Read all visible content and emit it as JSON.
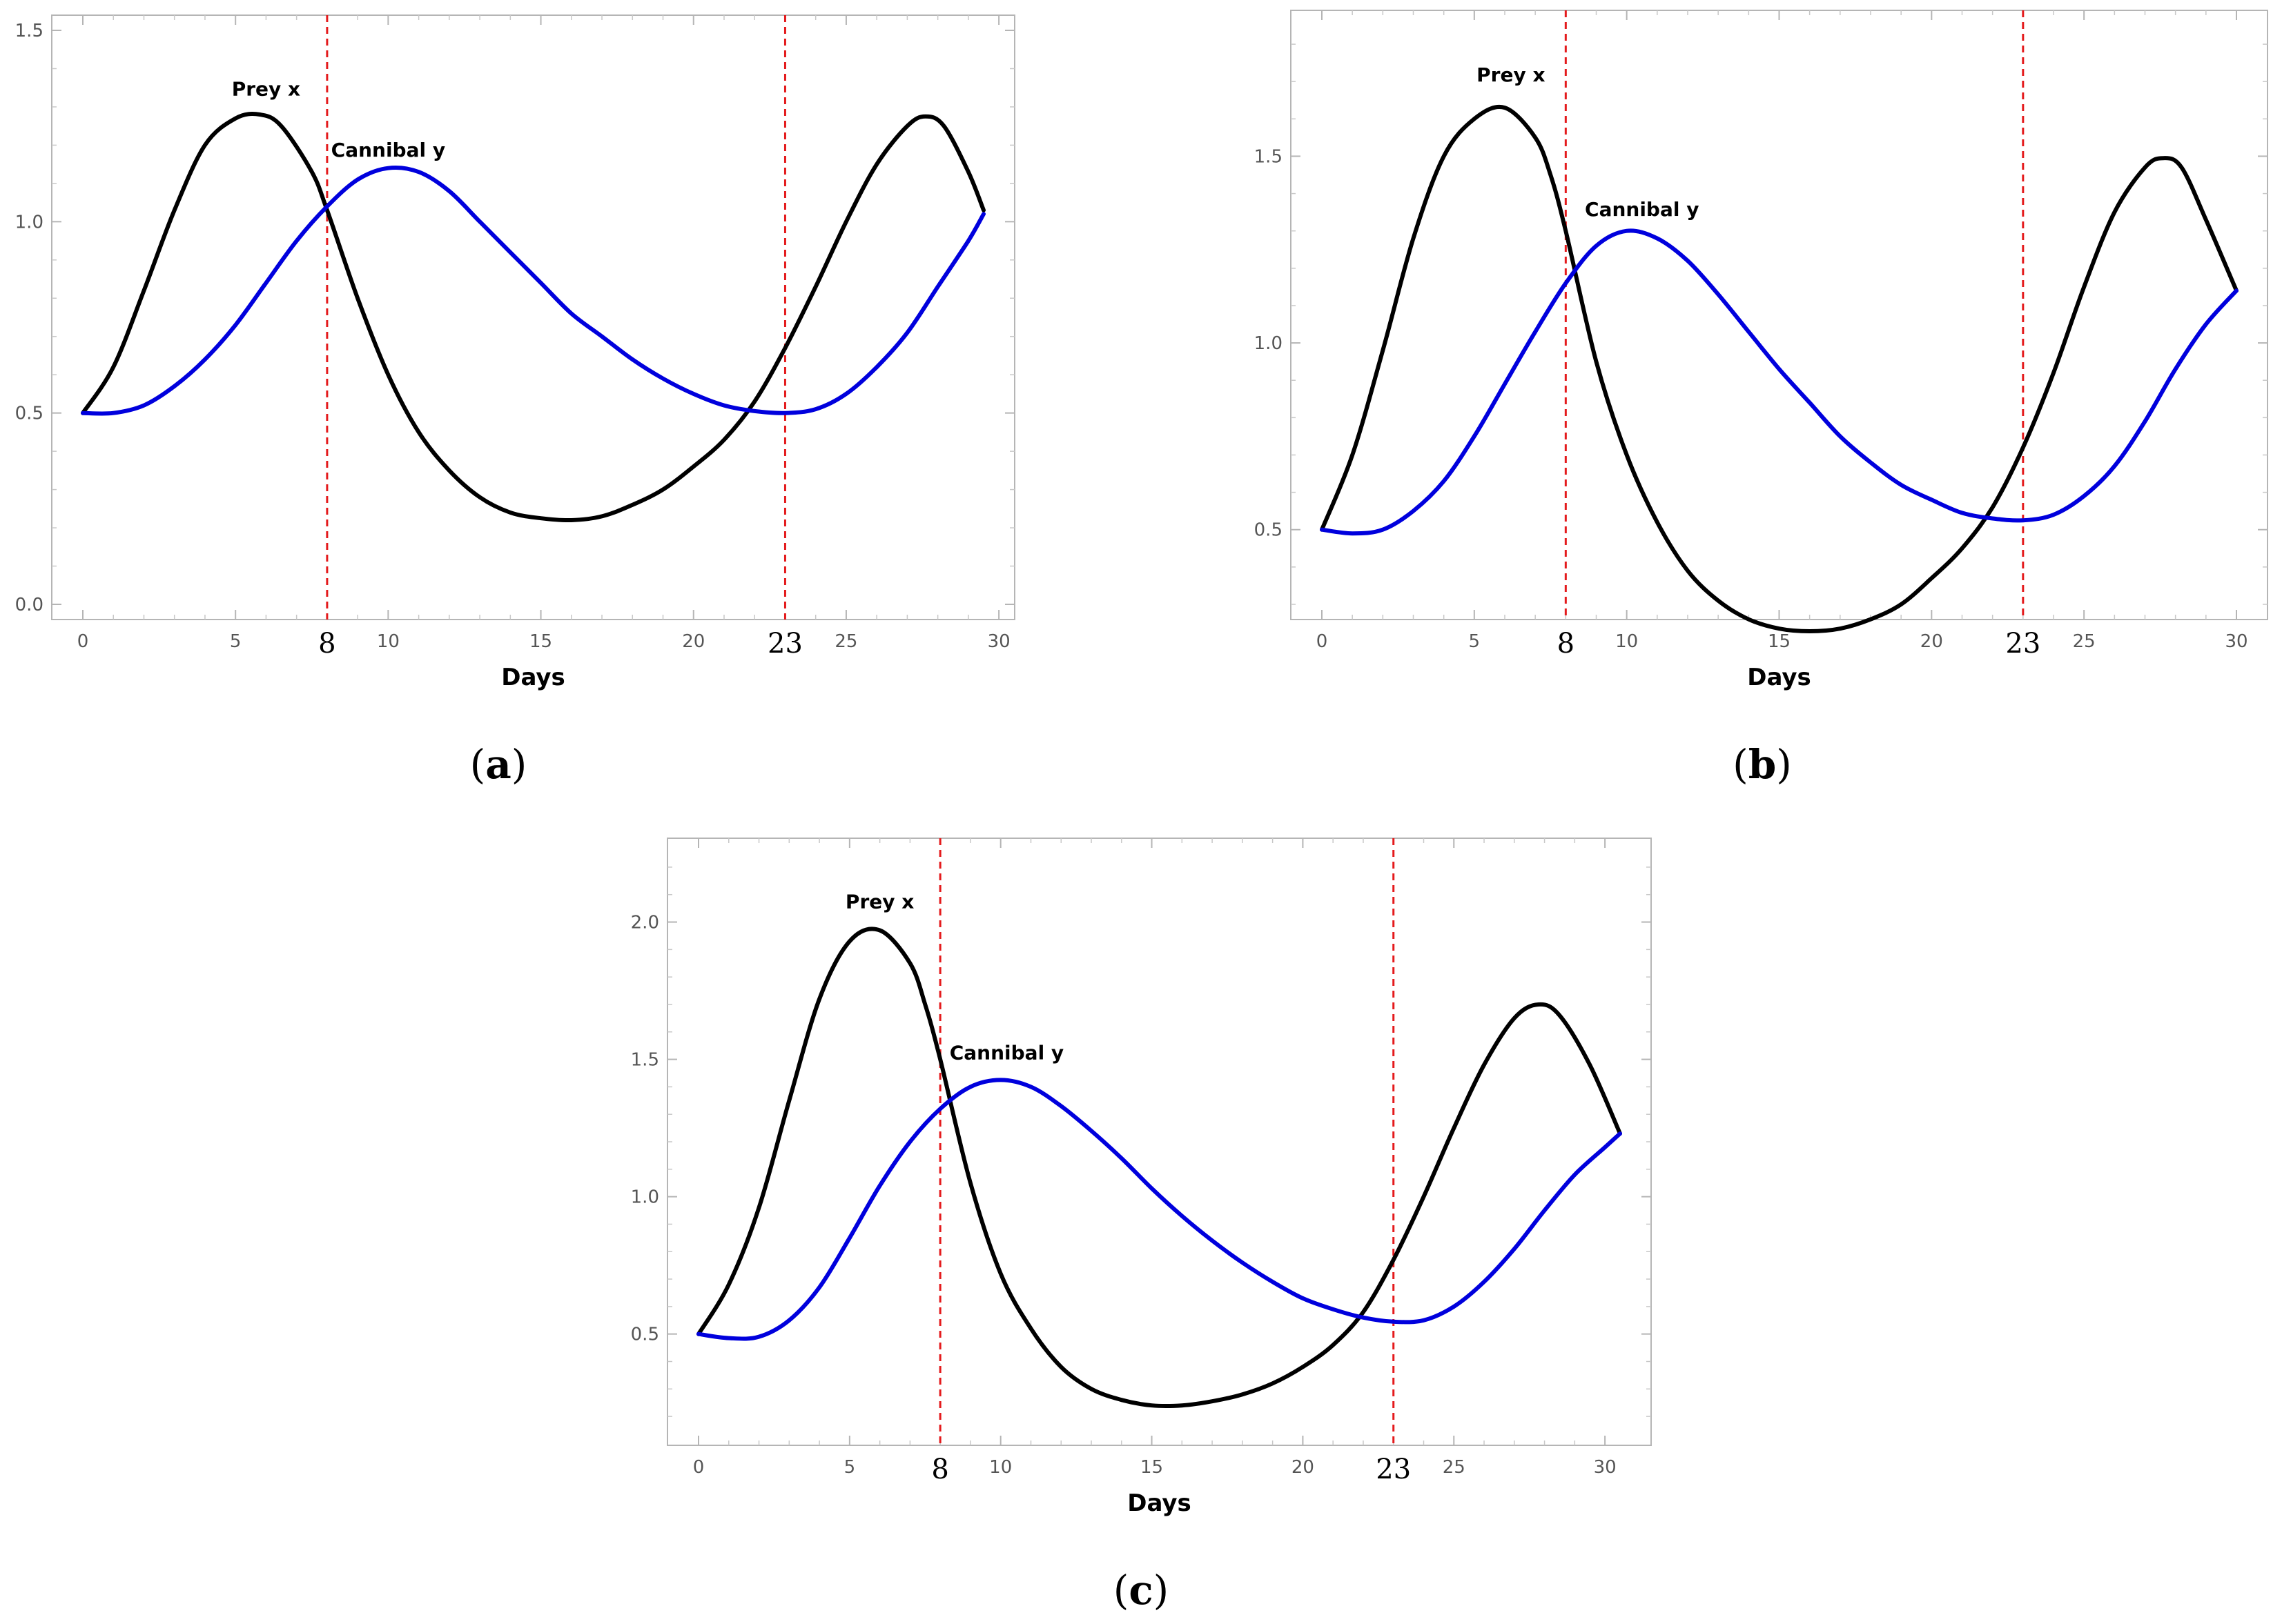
{
  "chart_data": [
    {
      "type": "line",
      "caption": "a",
      "xlabel": "Days",
      "ylabel": "",
      "xlim": [
        0,
        29.5
      ],
      "ylim": [
        0,
        1.5
      ],
      "xticks": [
        0,
        5,
        10,
        15,
        20,
        25,
        30
      ],
      "yticks": [
        "0.0",
        "0.5",
        "1.0",
        "1.5"
      ],
      "grid": false,
      "markers": [
        {
          "x": 8,
          "label": "8",
          "color": "#e41a1c"
        },
        {
          "x": 23,
          "label": "23",
          "color": "#e41a1c"
        }
      ],
      "series": [
        {
          "name": "Prey x",
          "color": "#000000",
          "label_at": [
            6,
            1.33
          ],
          "points": [
            [
              0,
              0.5
            ],
            [
              1,
              0.62
            ],
            [
              2,
              0.82
            ],
            [
              3,
              1.03
            ],
            [
              4,
              1.2
            ],
            [
              5,
              1.27
            ],
            [
              5.8,
              1.28
            ],
            [
              6.5,
              1.25
            ],
            [
              7.5,
              1.13
            ],
            [
              8,
              1.03
            ],
            [
              9,
              0.8
            ],
            [
              10,
              0.6
            ],
            [
              11,
              0.45
            ],
            [
              12,
              0.35
            ],
            [
              13,
              0.28
            ],
            [
              14,
              0.24
            ],
            [
              15,
              0.225
            ],
            [
              16,
              0.22
            ],
            [
              17,
              0.23
            ],
            [
              18,
              0.26
            ],
            [
              19,
              0.3
            ],
            [
              20,
              0.36
            ],
            [
              21,
              0.43
            ],
            [
              22,
              0.53
            ],
            [
              23,
              0.67
            ],
            [
              24,
              0.83
            ],
            [
              25,
              1.0
            ],
            [
              26,
              1.15
            ],
            [
              27,
              1.25
            ],
            [
              27.6,
              1.275
            ],
            [
              28.2,
              1.25
            ],
            [
              29,
              1.13
            ],
            [
              29.5,
              1.03
            ]
          ]
        },
        {
          "name": "Cannibal y",
          "color": "#0000dd",
          "label_at": [
            10,
            1.17
          ],
          "points": [
            [
              0,
              0.5
            ],
            [
              1,
              0.5
            ],
            [
              2,
              0.52
            ],
            [
              3,
              0.57
            ],
            [
              4,
              0.64
            ],
            [
              5,
              0.73
            ],
            [
              6,
              0.84
            ],
            [
              7,
              0.95
            ],
            [
              8,
              1.04
            ],
            [
              9,
              1.11
            ],
            [
              10,
              1.14
            ],
            [
              11,
              1.13
            ],
            [
              12,
              1.08
            ],
            [
              13,
              1.0
            ],
            [
              14,
              0.92
            ],
            [
              15,
              0.84
            ],
            [
              16,
              0.76
            ],
            [
              17,
              0.7
            ],
            [
              18,
              0.64
            ],
            [
              19,
              0.59
            ],
            [
              20,
              0.55
            ],
            [
              21,
              0.52
            ],
            [
              22,
              0.505
            ],
            [
              23,
              0.5
            ],
            [
              24,
              0.51
            ],
            [
              25,
              0.55
            ],
            [
              26,
              0.62
            ],
            [
              27,
              0.71
            ],
            [
              28,
              0.83
            ],
            [
              29,
              0.95
            ],
            [
              29.5,
              1.02
            ]
          ]
        }
      ]
    },
    {
      "type": "line",
      "caption": "b",
      "xlabel": "Days",
      "ylabel": "",
      "xlim": [
        0,
        30
      ],
      "ylim": [
        0.3,
        1.85
      ],
      "xticks": [
        0,
        5,
        10,
        15,
        20,
        25,
        30
      ],
      "yticks": [
        "0.5",
        "1.0",
        "1.5"
      ],
      "grid": false,
      "markers": [
        {
          "x": 8,
          "label": "8",
          "color": "#e41a1c"
        },
        {
          "x": 23,
          "label": "23",
          "color": "#e41a1c"
        }
      ],
      "series": [
        {
          "name": "Prey x",
          "color": "#000000",
          "label_at": [
            6.2,
            1.7
          ],
          "points": [
            [
              0,
              0.5
            ],
            [
              1,
              0.7
            ],
            [
              2,
              0.98
            ],
            [
              3,
              1.28
            ],
            [
              4,
              1.5
            ],
            [
              5,
              1.6
            ],
            [
              6,
              1.63
            ],
            [
              7,
              1.55
            ],
            [
              7.5,
              1.45
            ],
            [
              8,
              1.3
            ],
            [
              9,
              0.95
            ],
            [
              10,
              0.7
            ],
            [
              11,
              0.52
            ],
            [
              12,
              0.39
            ],
            [
              13,
              0.31
            ],
            [
              14,
              0.26
            ],
            [
              15,
              0.235
            ],
            [
              16,
              0.228
            ],
            [
              17,
              0.235
            ],
            [
              18,
              0.26
            ],
            [
              19,
              0.3
            ],
            [
              20,
              0.37
            ],
            [
              21,
              0.45
            ],
            [
              22,
              0.56
            ],
            [
              23,
              0.72
            ],
            [
              24,
              0.92
            ],
            [
              25,
              1.15
            ],
            [
              26,
              1.35
            ],
            [
              27,
              1.47
            ],
            [
              27.6,
              1.495
            ],
            [
              28.2,
              1.47
            ],
            [
              29,
              1.33
            ],
            [
              30,
              1.14
            ]
          ]
        },
        {
          "name": "Cannibal y",
          "color": "#0000dd",
          "label_at": [
            10.5,
            1.34
          ],
          "points": [
            [
              0,
              0.5
            ],
            [
              1,
              0.49
            ],
            [
              2,
              0.5
            ],
            [
              3,
              0.55
            ],
            [
              4,
              0.63
            ],
            [
              5,
              0.75
            ],
            [
              6,
              0.89
            ],
            [
              7,
              1.03
            ],
            [
              8,
              1.16
            ],
            [
              9,
              1.26
            ],
            [
              10,
              1.3
            ],
            [
              11,
              1.28
            ],
            [
              12,
              1.22
            ],
            [
              13,
              1.13
            ],
            [
              14,
              1.03
            ],
            [
              15,
              0.93
            ],
            [
              16,
              0.84
            ],
            [
              17,
              0.75
            ],
            [
              18,
              0.68
            ],
            [
              19,
              0.62
            ],
            [
              20,
              0.58
            ],
            [
              21,
              0.545
            ],
            [
              22,
              0.53
            ],
            [
              23,
              0.525
            ],
            [
              24,
              0.54
            ],
            [
              25,
              0.59
            ],
            [
              26,
              0.67
            ],
            [
              27,
              0.79
            ],
            [
              28,
              0.93
            ],
            [
              29,
              1.05
            ],
            [
              30,
              1.14
            ]
          ]
        }
      ]
    },
    {
      "type": "line",
      "caption": "c",
      "xlabel": "Days",
      "ylabel": "",
      "xlim": [
        0,
        30.5
      ],
      "ylim": [
        0.15,
        2.25
      ],
      "xticks": [
        0,
        5,
        10,
        15,
        20,
        25,
        30
      ],
      "yticks": [
        "0.5",
        "1.0",
        "1.5",
        "2.0"
      ],
      "grid": false,
      "markers": [
        {
          "x": 8,
          "label": "8",
          "color": "#e41a1c"
        },
        {
          "x": 23,
          "label": "23",
          "color": "#e41a1c"
        }
      ],
      "series": [
        {
          "name": "Prey x",
          "color": "#000000",
          "label_at": [
            6,
            2.05
          ],
          "points": [
            [
              0,
              0.5
            ],
            [
              1,
              0.68
            ],
            [
              2,
              0.96
            ],
            [
              3,
              1.35
            ],
            [
              4,
              1.72
            ],
            [
              5,
              1.93
            ],
            [
              6,
              1.97
            ],
            [
              7,
              1.85
            ],
            [
              7.5,
              1.7
            ],
            [
              8,
              1.5
            ],
            [
              9,
              1.05
            ],
            [
              10,
              0.72
            ],
            [
              11,
              0.52
            ],
            [
              12,
              0.38
            ],
            [
              13,
              0.3
            ],
            [
              14,
              0.26
            ],
            [
              15,
              0.24
            ],
            [
              16,
              0.24
            ],
            [
              17,
              0.255
            ],
            [
              18,
              0.28
            ],
            [
              19,
              0.32
            ],
            [
              20,
              0.38
            ],
            [
              21,
              0.46
            ],
            [
              22,
              0.58
            ],
            [
              23,
              0.77
            ],
            [
              24,
              1.0
            ],
            [
              25,
              1.25
            ],
            [
              26,
              1.48
            ],
            [
              27,
              1.65
            ],
            [
              27.8,
              1.7
            ],
            [
              28.5,
              1.66
            ],
            [
              29.5,
              1.48
            ],
            [
              30.5,
              1.23
            ]
          ]
        },
        {
          "name": "Cannibal y",
          "color": "#0000dd",
          "label_at": [
            10.2,
            1.5
          ],
          "points": [
            [
              0,
              0.5
            ],
            [
              1,
              0.485
            ],
            [
              2,
              0.49
            ],
            [
              3,
              0.55
            ],
            [
              4,
              0.67
            ],
            [
              5,
              0.85
            ],
            [
              6,
              1.04
            ],
            [
              7,
              1.2
            ],
            [
              8,
              1.32
            ],
            [
              9,
              1.4
            ],
            [
              10,
              1.425
            ],
            [
              11,
              1.4
            ],
            [
              12,
              1.33
            ],
            [
              13,
              1.24
            ],
            [
              14,
              1.14
            ],
            [
              15,
              1.03
            ],
            [
              16,
              0.93
            ],
            [
              17,
              0.84
            ],
            [
              18,
              0.76
            ],
            [
              19,
              0.69
            ],
            [
              20,
              0.63
            ],
            [
              21,
              0.59
            ],
            [
              22,
              0.56
            ],
            [
              23,
              0.545
            ],
            [
              24,
              0.55
            ],
            [
              25,
              0.6
            ],
            [
              26,
              0.69
            ],
            [
              27,
              0.81
            ],
            [
              28,
              0.95
            ],
            [
              29,
              1.08
            ],
            [
              30,
              1.18
            ],
            [
              30.5,
              1.23
            ]
          ]
        }
      ]
    }
  ]
}
